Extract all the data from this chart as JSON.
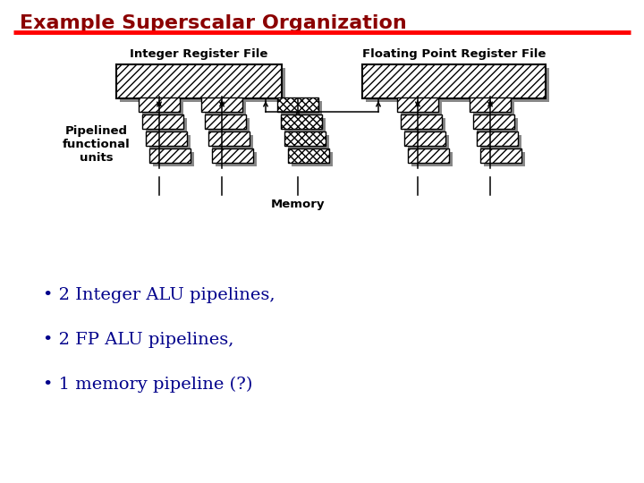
{
  "title": "Example Superscalar Organization",
  "title_color": "#8B0000",
  "title_fontsize": 16,
  "underline_color": "#FF0000",
  "bg_color": "#FFFFFF",
  "diagram_text_color": "#000000",
  "bullet_color": "#00008B",
  "bullet_fontsize": 14,
  "bullets": [
    "• 2 Integer ALU pipelines,",
    "• 2 FP ALU pipelines,",
    "• 1 memory pipeline (?)"
  ],
  "label_int_reg": "Integer Register File",
  "label_fp_reg": "Floating Point Register File",
  "label_memory": "Memory",
  "label_pipelined": "Pipelined\nfunctional\nunits"
}
